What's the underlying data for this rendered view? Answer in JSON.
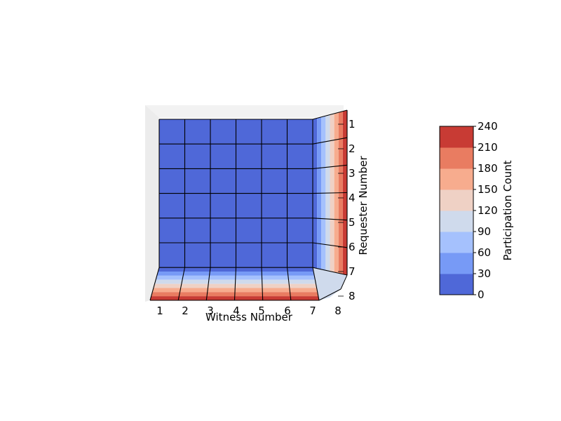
{
  "chart_data": {
    "type": "surface3d-contour",
    "view": "near top-down projection",
    "x_axis": {
      "label": "Witness Number",
      "ticks": [
        "1",
        "2",
        "3",
        "4",
        "5",
        "6",
        "7",
        "8"
      ]
    },
    "y_axis": {
      "label": "Requester Number",
      "ticks": [
        "1",
        "2",
        "3",
        "4",
        "5",
        "6",
        "7",
        "8"
      ]
    },
    "colorbar": {
      "label": "Participation Count",
      "ticks": [
        "0",
        "30",
        "60",
        "90",
        "120",
        "150",
        "180",
        "210",
        "240"
      ],
      "levels": [
        0,
        30,
        60,
        90,
        120,
        150,
        180,
        210,
        240
      ],
      "colors": [
        "#4f68d8",
        "#779af6",
        "#a5c1fd",
        "#cfdaec",
        "#efd1c5",
        "#f7ac8e",
        "#e97c61",
        "#c83b34"
      ]
    },
    "grid_values": [
      [
        0,
        0,
        0,
        0,
        0,
        0,
        0,
        240
      ],
      [
        0,
        0,
        0,
        0,
        0,
        0,
        0,
        240
      ],
      [
        0,
        0,
        0,
        0,
        0,
        0,
        0,
        240
      ],
      [
        0,
        0,
        0,
        0,
        0,
        0,
        0,
        240
      ],
      [
        0,
        0,
        0,
        0,
        0,
        0,
        0,
        240
      ],
      [
        0,
        0,
        0,
        0,
        0,
        0,
        0,
        240
      ],
      [
        0,
        0,
        0,
        0,
        0,
        0,
        0,
        240
      ],
      [
        240,
        240,
        240,
        240,
        240,
        240,
        240,
        100
      ]
    ],
    "z_range": [
      0,
      240
    ]
  }
}
